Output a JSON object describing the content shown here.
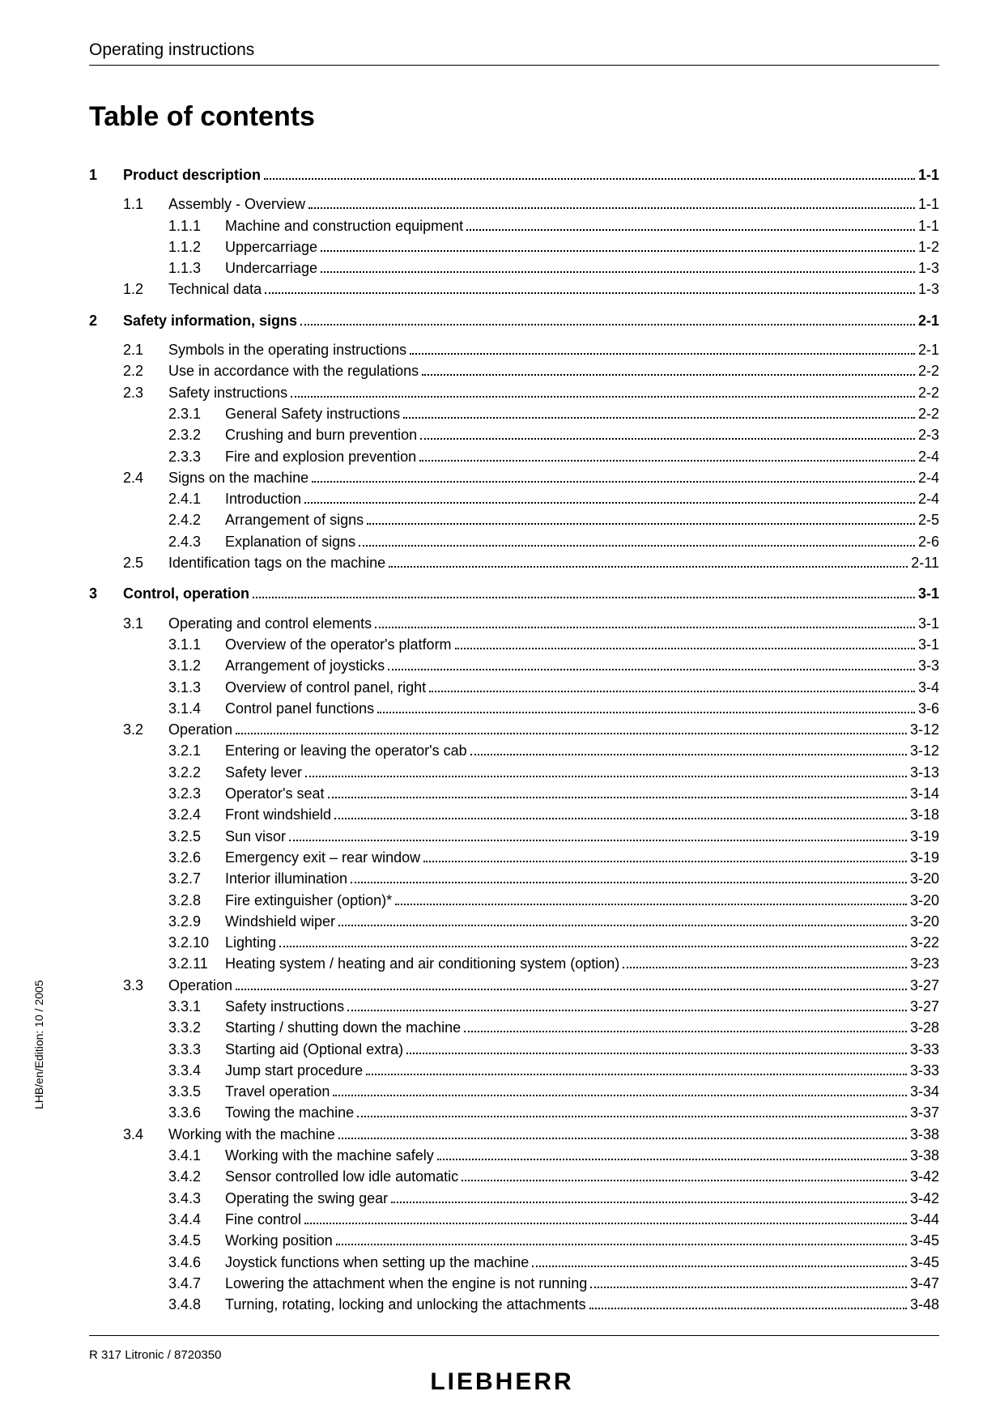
{
  "header": {
    "title": "Operating instructions"
  },
  "main_title": "Table of contents",
  "side_text": "LHB/en/Edition: 10 / 2005",
  "footer_left": "R 317 Litronic / 8720350",
  "brand": "LIEBHERR",
  "chapters": [
    {
      "num": "1",
      "title": "Product description",
      "page": "1-1",
      "sections": [
        {
          "num": "1.1",
          "title": "Assembly - Overview",
          "page": "1-1",
          "subs": [
            {
              "num": "1.1.1",
              "title": "Machine and construction equipment",
              "page": "1-1"
            },
            {
              "num": "1.1.2",
              "title": "Uppercarriage",
              "page": "1-2"
            },
            {
              "num": "1.1.3",
              "title": "Undercarriage",
              "page": "1-3"
            }
          ]
        },
        {
          "num": "1.2",
          "title": "Technical data",
          "page": "1-3",
          "subs": []
        }
      ]
    },
    {
      "num": "2",
      "title": "Safety information, signs",
      "page": "2-1",
      "sections": [
        {
          "num": "2.1",
          "title": "Symbols in the operating instructions",
          "page": "2-1",
          "subs": []
        },
        {
          "num": "2.2",
          "title": "Use in accordance with the regulations",
          "page": "2-2",
          "subs": []
        },
        {
          "num": "2.3",
          "title": "Safety instructions",
          "page": "2-2",
          "subs": [
            {
              "num": "2.3.1",
              "title": "General Safety instructions",
              "page": "2-2"
            },
            {
              "num": "2.3.2",
              "title": "Crushing and burn prevention",
              "page": "2-3"
            },
            {
              "num": "2.3.3",
              "title": "Fire and explosion prevention",
              "page": "2-4"
            }
          ]
        },
        {
          "num": "2.4",
          "title": "Signs on the machine",
          "page": "2-4",
          "subs": [
            {
              "num": "2.4.1",
              "title": "Introduction",
              "page": "2-4"
            },
            {
              "num": "2.4.2",
              "title": "Arrangement of signs",
              "page": "2-5"
            },
            {
              "num": "2.4.3",
              "title": "Explanation of signs",
              "page": "2-6"
            }
          ]
        },
        {
          "num": "2.5",
          "title": "Identification tags on the machine",
          "page": "2-11",
          "subs": []
        }
      ]
    },
    {
      "num": "3",
      "title": "Control, operation",
      "page": "3-1",
      "sections": [
        {
          "num": "3.1",
          "title": "Operating and control elements",
          "page": "3-1",
          "subs": [
            {
              "num": "3.1.1",
              "title": "Overview of the operator's platform",
              "page": "3-1"
            },
            {
              "num": "3.1.2",
              "title": "Arrangement of joysticks",
              "page": "3-3"
            },
            {
              "num": "3.1.3",
              "title": "Overview of control panel, right",
              "page": "3-4"
            },
            {
              "num": "3.1.4",
              "title": "Control panel functions",
              "page": "3-6"
            }
          ]
        },
        {
          "num": "3.2",
          "title": "Operation",
          "page": "3-12",
          "subs": [
            {
              "num": "3.2.1",
              "title": "Entering or leaving the operator's cab",
              "page": "3-12"
            },
            {
              "num": "3.2.2",
              "title": "Safety lever",
              "page": "3-13"
            },
            {
              "num": "3.2.3",
              "title": "Operator's seat",
              "page": "3-14"
            },
            {
              "num": "3.2.4",
              "title": "Front windshield",
              "page": "3-18"
            },
            {
              "num": "3.2.5",
              "title": "Sun visor",
              "page": "3-19"
            },
            {
              "num": "3.2.6",
              "title": "Emergency exit – rear window",
              "page": "3-19"
            },
            {
              "num": "3.2.7",
              "title": "Interior illumination",
              "page": "3-20"
            },
            {
              "num": "3.2.8",
              "title": "Fire extinguisher (option)*",
              "page": "3-20"
            },
            {
              "num": "3.2.9",
              "title": "Windshield wiper",
              "page": "3-20"
            },
            {
              "num": "3.2.10",
              "title": "Lighting",
              "page": "3-22"
            },
            {
              "num": "3.2.11",
              "title": "Heating system / heating and air conditioning system (option)",
              "page": "3-23"
            }
          ]
        },
        {
          "num": "3.3",
          "title": "Operation",
          "page": "3-27",
          "subs": [
            {
              "num": "3.3.1",
              "title": "Safety instructions",
              "page": "3-27"
            },
            {
              "num": "3.3.2",
              "title": "Starting / shutting down the machine",
              "page": "3-28"
            },
            {
              "num": "3.3.3",
              "title": "Starting aid (Optional extra)",
              "page": "3-33"
            },
            {
              "num": "3.3.4",
              "title": "Jump start procedure",
              "page": "3-33"
            },
            {
              "num": "3.3.5",
              "title": "Travel operation",
              "page": "3-34"
            },
            {
              "num": "3.3.6",
              "title": "Towing the machine",
              "page": "3-37"
            }
          ]
        },
        {
          "num": "3.4",
          "title": "Working with the machine",
          "page": "3-38",
          "subs": [
            {
              "num": "3.4.1",
              "title": "Working with the machine safely",
              "page": "3-38"
            },
            {
              "num": "3.4.2",
              "title": "Sensor controlled low idle automatic",
              "page": "3-42"
            },
            {
              "num": "3.4.3",
              "title": "Operating the swing gear",
              "page": "3-42"
            },
            {
              "num": "3.4.4",
              "title": "Fine control",
              "page": "3-44"
            },
            {
              "num": "3.4.5",
              "title": "Working position",
              "page": "3-45"
            },
            {
              "num": "3.4.6",
              "title": "Joystick functions when setting up the machine",
              "page": "3-45"
            },
            {
              "num": "3.4.7",
              "title": "Lowering the attachment when the engine is not running",
              "page": "3-47"
            },
            {
              "num": "3.4.8",
              "title": "Turning, rotating, locking and unlocking the attachments",
              "page": "3-48"
            }
          ]
        }
      ]
    }
  ]
}
